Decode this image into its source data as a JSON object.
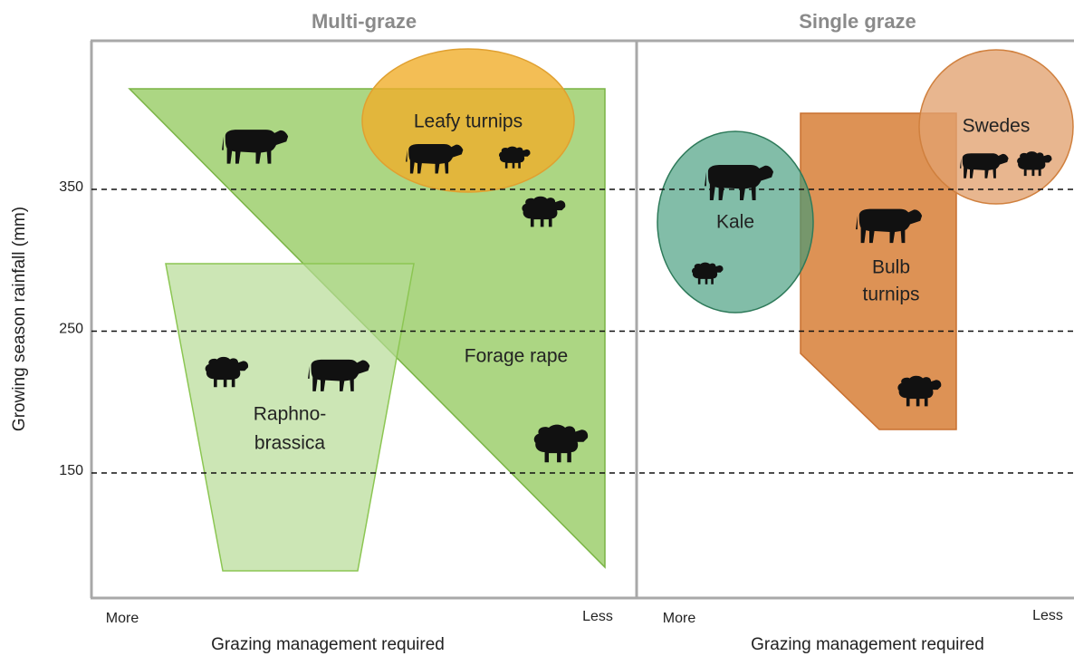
{
  "panels": [
    {
      "title": "Multi-graze",
      "x_start": "More",
      "x_end": "Less",
      "x_label": "Grazing management required"
    },
    {
      "title": "Single graze",
      "x_start": "More",
      "x_end": "Less",
      "x_label": "Grazing management required"
    }
  ],
  "y_axis": {
    "label": "Growing season rainfall (mm)",
    "ticks": [
      350,
      250,
      150
    ]
  },
  "regions": [
    {
      "lines": [
        "Leafy turnips"
      ]
    },
    {
      "lines": [
        "Forage rape"
      ]
    },
    {
      "lines": [
        "Raphno-",
        "brassica"
      ]
    },
    {
      "lines": [
        "Kale"
      ]
    },
    {
      "lines": [
        "Bulb",
        "turnips"
      ]
    },
    {
      "lines": [
        "Swedes"
      ]
    }
  ]
}
